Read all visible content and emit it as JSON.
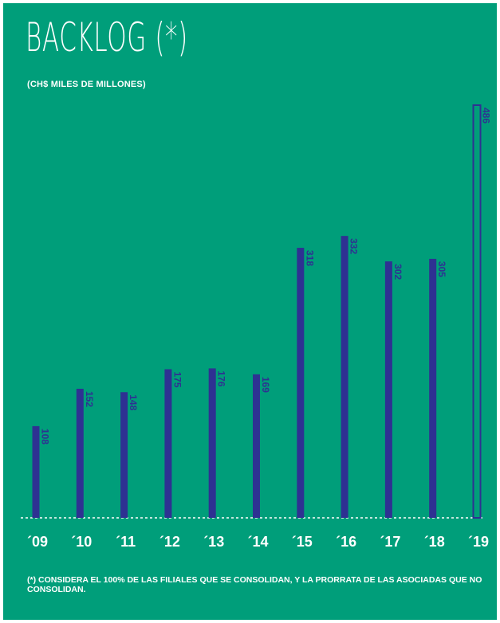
{
  "title": "BACKLOG (*)",
  "subtitle": "(CH$ MILES DE MILLONES)",
  "footnote": "(*) CONSIDERA EL 100% DE LAS FILIALES QUE SE CONSOLIDAN, Y LA PRORRATA DE LAS ASOCIADAS QUE NO CONSOLIDAN.",
  "colors": {
    "background": "#009E7A",
    "bar": "#2E3192",
    "text": "#ffffff",
    "baseline": "#ffffff"
  },
  "chart_data": {
    "type": "bar",
    "categories": [
      "´09",
      "´10",
      "´11",
      "´12",
      "´13",
      "´14",
      "´15",
      "´16",
      "´17",
      "´18",
      "´19"
    ],
    "values": [
      108,
      152,
      148,
      175,
      176,
      169,
      318,
      332,
      302,
      305,
      486
    ],
    "highlight_last_as_outline": true,
    "ylim": [
      0,
      486
    ],
    "grid": false,
    "legend": "none",
    "baseline": "dotted"
  }
}
